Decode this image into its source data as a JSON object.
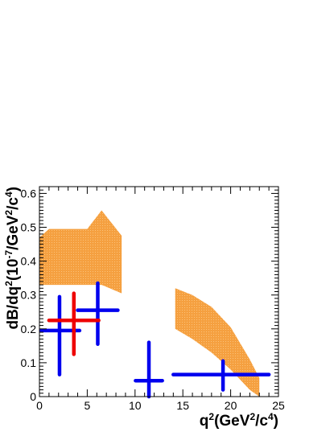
{
  "chart_data": {
    "type": "scatter",
    "title": "",
    "xlabel": "q^2(GeV^2/c^4)",
    "ylabel": "dB/dq^2(10^-7/GeV^2/c^4)",
    "xlim": [
      0,
      25
    ],
    "ylim": [
      0,
      0.62
    ],
    "grid": false,
    "x_ticks": [
      0,
      5,
      10,
      15,
      20,
      25
    ],
    "y_ticks": [
      0,
      0.1,
      0.2,
      0.3,
      0.4,
      0.5,
      0.6
    ],
    "colors": {
      "blue": "#0000ee",
      "red": "#ee0000",
      "band": "#f5a040"
    },
    "bands": [
      {
        "x": [
          0,
          1,
          5,
          6.5,
          8.6
        ],
        "ylow": [
          0.33,
          0.33,
          0.33,
          0.33,
          0.305
        ],
        "yhigh": [
          0.47,
          0.495,
          0.495,
          0.55,
          0.475
        ]
      },
      {
        "x": [
          14.2,
          16,
          18,
          20,
          22,
          23
        ],
        "ylow": [
          0.2,
          0.17,
          0.13,
          0.08,
          0.02,
          0.0
        ],
        "yhigh": [
          0.32,
          0.3,
          0.265,
          0.205,
          0.11,
          0.055
        ]
      }
    ],
    "series": [
      {
        "color": "blue",
        "points": [
          {
            "x": 2.1,
            "y": 0.195,
            "xerr": [
              1.9,
              2.1
            ],
            "yerr": [
              0.13,
              0.1
            ]
          },
          {
            "x": 6.1,
            "y": 0.255,
            "xerr": [
              2.1,
              2.1
            ],
            "yerr": [
              0.1,
              0.08
            ]
          },
          {
            "x": 11.45,
            "y": 0.047,
            "xerr": [
              1.4,
              1.4
            ],
            "yerr": [
              0.047,
              0.113
            ]
          },
          {
            "x": 19.2,
            "y": 0.065,
            "xerr": [
              5.2,
              4.8
            ],
            "yerr": [
              0.045,
              0.04
            ]
          }
        ]
      },
      {
        "color": "red",
        "points": [
          {
            "x": 3.6,
            "y": 0.225,
            "xerr": [
              2.6,
              2.6
            ],
            "yerr": [
              0.1,
              0.08
            ]
          }
        ]
      }
    ]
  }
}
